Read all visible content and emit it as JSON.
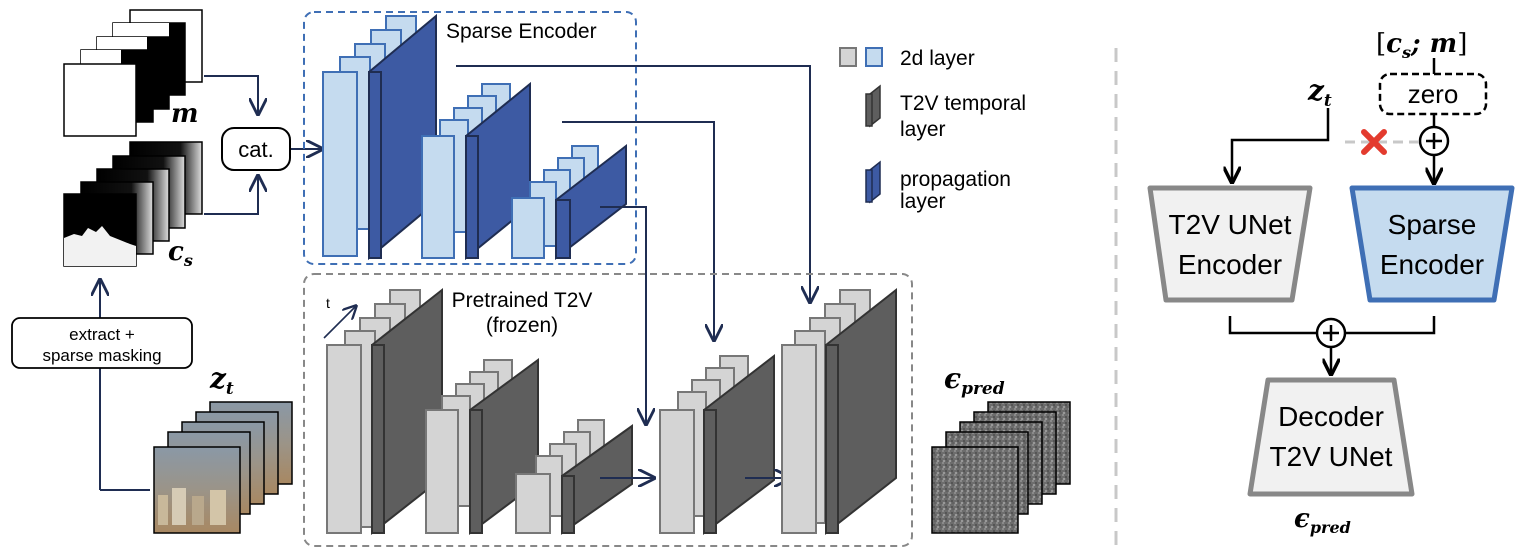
{
  "left": {
    "mask_label": "m",
    "cs_label": "c",
    "cs_sub": "s",
    "concat_label": "cat.",
    "extract_label_line1": "extract +",
    "extract_label_line2": "sparse masking",
    "zt_label": "z",
    "zt_sub": "t",
    "eps_label": "ϵ",
    "eps_sub": "pred",
    "sparse_encoder_title": "Sparse Encoder",
    "pretrained_line1": "Pretrained T2V",
    "pretrained_line2": "(frozen)",
    "time_axis_label": "t"
  },
  "legend": {
    "layer2d": "2d layer",
    "temporal_line1": "T2V temporal",
    "temporal_line2": "layer",
    "propagation_line1": "propagation",
    "propagation_line2": "layer"
  },
  "right": {
    "cond_open": "[",
    "cond_c": "c",
    "cond_sub": "s",
    "cond_sep": "; ",
    "cond_m": "m",
    "cond_close": "]",
    "zero_label": "zero",
    "zt_label": "z",
    "zt_sub": "t",
    "unet_enc_line1": "T2V UNet",
    "unet_enc_line2": "Encoder",
    "sparse_enc_line1": "Sparse",
    "sparse_enc_line2": "Encoder",
    "decoder_line1": "Decoder",
    "decoder_line2": "T2V UNet",
    "eps_label": "ϵ",
    "eps_sub": "pred"
  },
  "colors": {
    "light_blue": "#c5dbef",
    "blue_border": "#3f6fb5",
    "dark_blue": "#3d5aa3",
    "light_gray": "#d4d4d4",
    "dark_gray": "#5e5e5e",
    "navy_arrow": "#1f2d52",
    "red_cross": "#e33b2e",
    "box_fill": "#f1f1f1",
    "box_border": "#888888"
  }
}
